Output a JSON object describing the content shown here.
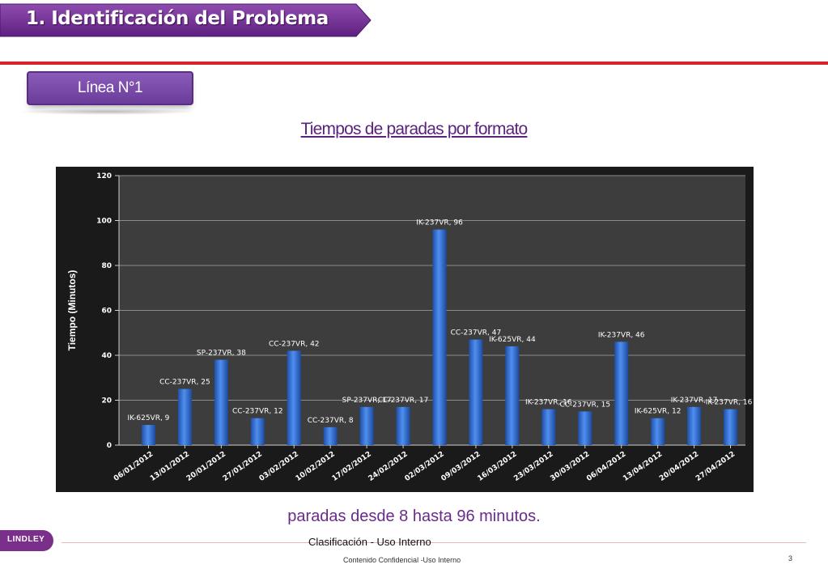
{
  "header": {
    "title": "1. Identificación del Problema"
  },
  "badge": {
    "label": "Línea N°1"
  },
  "chart_title": "Tiempos de paradas por formato",
  "summary": "paradas desde 8  hasta 96 minutos.",
  "footer": {
    "logo_text": "LINDLEY",
    "classification": "Clasificación - Uso Interno",
    "confidential": "Contenido Confidencial -Uso Interno",
    "page_number": "3"
  },
  "colors": {
    "purple": "#6b2d8f",
    "red_rule": "#d8232a",
    "bar": "#2f6fd0",
    "chart_bg": "#1a1a1a"
  },
  "chart_data": {
    "type": "bar",
    "title": "",
    "xlabel": "",
    "ylabel": "Tiempo (Minutos)",
    "ylim": [
      0,
      120
    ],
    "yticks": [
      0,
      20,
      40,
      60,
      80,
      100,
      120
    ],
    "grid": true,
    "categories": [
      "06/01/2012",
      "13/01/2012",
      "20/01/2012",
      "27/01/2012",
      "03/02/2012",
      "10/02/2012",
      "17/02/2012",
      "24/02/2012",
      "02/03/2012",
      "09/03/2012",
      "16/03/2012",
      "23/03/2012",
      "30/03/2012",
      "06/04/2012",
      "13/04/2012",
      "20/04/2012",
      "27/04/2012"
    ],
    "values": [
      9,
      25,
      38,
      12,
      42,
      8,
      17,
      17,
      96,
      47,
      44,
      16,
      15,
      46,
      12,
      17,
      16
    ],
    "data_labels": [
      "IK-625VR, 9",
      "CC-237VR, 25",
      "SP-237VR, 38",
      "CC-237VR, 12",
      "CC-237VR, 42",
      "CC-237VR, 8",
      "SP-237VR, 17",
      "CC-237VR, 17",
      "IK-237VR, 96",
      "CC-237VR, 47",
      "IK-625VR, 44",
      "IK-237VR, 16",
      "CC-237VR, 15",
      "IK-237VR, 46",
      "IK-625VR, 12",
      "IK-237VR, 17",
      "IK-237VR, 16"
    ]
  }
}
